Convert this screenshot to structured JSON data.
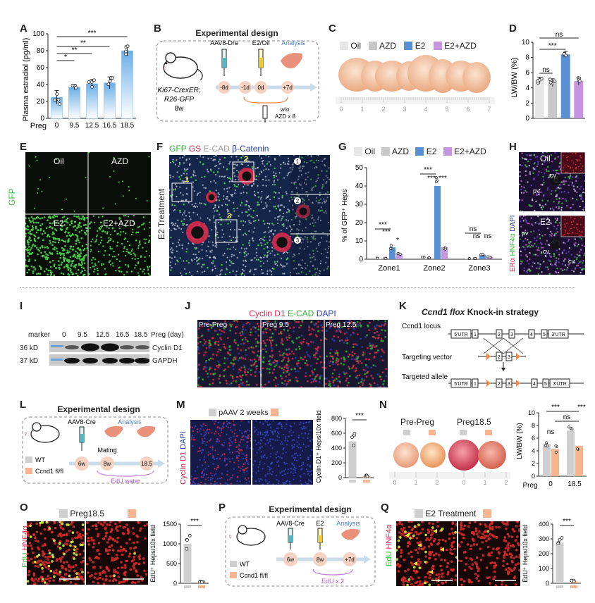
{
  "panels": {
    "A": {
      "label": "A",
      "ylabel": "Plasma estradiol (pg/ml)",
      "xprefix": "Preg",
      "categories": [
        "0",
        "9.5",
        "12.5",
        "16.5",
        "18.5"
      ],
      "yticks": [
        "0",
        "20",
        "40",
        "60",
        "80",
        "100"
      ],
      "sig": [
        "*",
        "**",
        "**",
        "***"
      ]
    },
    "B": {
      "label": "B",
      "title": "Experimental design",
      "mouse_line1": "Ki67-CrexER;",
      "mouse_line2": "R26-GFP",
      "mouse_age": "8w",
      "inj1": "AAV8-Dre",
      "inj2": "E2/Oil",
      "analysis": "Analysis",
      "t1": "-8d",
      "t2": "-1d",
      "t3": "0d",
      "t4": "+7d",
      "wo": "w/o",
      "azd": "AZD x 8"
    },
    "C": {
      "label": "C",
      "legend": [
        "Oil",
        "AZD",
        "E2",
        "E2+AZD"
      ],
      "ruler": [
        "0",
        "1",
        "2",
        "3",
        "4",
        "5",
        "6",
        "7"
      ]
    },
    "D": {
      "label": "D",
      "ylabel": "LW/BW (%)",
      "yticks": [
        "0",
        "2",
        "4",
        "6",
        "8",
        "10"
      ],
      "sig": [
        "ns",
        "***",
        "ns"
      ]
    },
    "E": {
      "label": "E",
      "side": "GFP",
      "quads": [
        "Oil",
        "AZD",
        "E2",
        "E2+AZD"
      ]
    },
    "F": {
      "label": "F",
      "side": "E2 Treatment",
      "title_gfp": "GFP",
      "title_gs": "GS",
      "title_ecad": "E-CAD",
      "title_bcat": "β-Catenin",
      "zones": [
        "1",
        "2",
        "3"
      ]
    },
    "G": {
      "label": "G",
      "legend": [
        "Oil",
        "AZD",
        "E2",
        "E2+AZD"
      ],
      "ylabel": "% of GFP⁺ Heps",
      "yticks": [
        "0",
        "10",
        "20",
        "30",
        "40",
        "50"
      ],
      "sig_z1": [
        "***",
        "***",
        "*"
      ],
      "sig_z2": [
        "***",
        "***",
        "***"
      ],
      "sig_z3": [
        "ns",
        "ns",
        "ns"
      ]
    },
    "H": {
      "label": "H",
      "top": "Oil",
      "bottom": "E2",
      "side_era": "ERα",
      "side_hnf": "HNF4α",
      "side_dapi": "DAPI",
      "pv": "pv",
      "cv": "cv"
    },
    "I": {
      "label": "I",
      "marker": "marker",
      "lanes": [
        "0",
        "9.5",
        "12.5",
        "16.5",
        "18.5"
      ],
      "lane_unit": "Preg (day)",
      "kd1": "36 kD",
      "kd2": "37 kD",
      "band1": "Cyclin D1",
      "band2": "GAPDH"
    },
    "J": {
      "label": "J",
      "title_c": "Cyclin D1",
      "title_e": "E-CAD",
      "title_d": "DAPI",
      "tiles": [
        "Pre-Preg",
        "Preg 9.5",
        "Preg 12.5"
      ]
    },
    "K": {
      "label": "K",
      "title_italic": "Ccnd1 flox",
      "title_rest": "Knock-in strategy",
      "rows": [
        "Ccnd1 locus",
        "Targeting vector",
        "Targeted allele"
      ],
      "utr5": "5'UTR",
      "utr3": "3'UTR",
      "exons": [
        "1",
        "2",
        "3",
        "4",
        "5"
      ]
    },
    "L": {
      "label": "L",
      "title": "Experimental design",
      "inj": "AAV8-Cre",
      "analysis": "Analysis",
      "mating": "Mating",
      "t1": "6w",
      "t2": "8w",
      "t3": "18.5",
      "edu": "EdU water",
      "legend": [
        "WT",
        "Ccnd1 fl/fl"
      ]
    },
    "M": {
      "label": "M",
      "legend": "pAAV 2 weeks",
      "side_c": "Cyclin D1",
      "side_d": "DAPI",
      "ylabel": "Cyclin D1⁺ Heps/10x field",
      "yticks": [
        "0",
        "200",
        "400",
        "600",
        "800"
      ],
      "sig": "***"
    },
    "N": {
      "label": "N",
      "groups": [
        "Pre-Preg",
        "Preg18.5"
      ],
      "ruler": [
        "0",
        "1",
        "2",
        "0",
        "1",
        "2"
      ],
      "ylabel": "LW/BW (%)",
      "yticks": [
        "0",
        "2",
        "4",
        "6",
        "8",
        "10"
      ],
      "xprefix": "Preg",
      "xcats": [
        "0",
        "18.5"
      ],
      "sig": [
        "***",
        "***",
        "ns",
        "ns"
      ]
    },
    "O": {
      "label": "O",
      "legend": "Preg18.5",
      "side_e": "EdU",
      "side_h": "HNF4α",
      "ylabel": "EdU⁺ Heps/10x field",
      "yticks": [
        "0",
        "500",
        "1000",
        "1500"
      ],
      "sig": "***"
    },
    "P": {
      "label": "P",
      "title": "Experimental design",
      "inj1": "AAV8-Cre",
      "inj2": "E2",
      "analysis": "Analysis",
      "t1": "6w",
      "t2": "8w",
      "t3": "+7d",
      "edu": "EdU x 2",
      "legend": [
        "WT",
        "Ccnd1 fl/fl"
      ]
    },
    "Q": {
      "label": "Q",
      "legend": "E2 Treatment",
      "side_e": "EdU",
      "side_h": "HNF4α",
      "ylabel": "EdU⁺ Heps/10x field",
      "yticks": [
        "0",
        "100",
        "200",
        "300",
        "400"
      ],
      "sig": "***"
    }
  },
  "colors": {
    "oil": "#e6e6e6",
    "azd": "#c8c8c8",
    "e2": "#5b8fd4",
    "e2azd": "#c695e0",
    "wt": "#cfcfcf",
    "flfl": "#f6b490",
    "micro_green": "#2fb52f",
    "micro_red": "#d62a4a",
    "micro_blue": "#2a3fa8"
  },
  "chart_data": [
    {
      "panel": "A",
      "type": "bar",
      "categories": [
        "0",
        "9.5",
        "12.5",
        "16.5",
        "18.5"
      ],
      "values": [
        25,
        37,
        41,
        42,
        80
      ],
      "errors": [
        8,
        3,
        5,
        7,
        6
      ],
      "ylim": [
        0,
        100
      ],
      "ylabel": "Plasma estradiol (pg/ml)"
    },
    {
      "panel": "D",
      "type": "bar",
      "categories": [
        "Oil",
        "AZD",
        "E2",
        "E2+AZD"
      ],
      "values": [
        5.0,
        4.7,
        8.4,
        4.9
      ],
      "errors": [
        0.4,
        0.5,
        0.4,
        0.5
      ],
      "ylim": [
        0,
        10
      ],
      "ylabel": "LW/BW (%)"
    },
    {
      "panel": "G",
      "type": "bar",
      "categories": [
        "Zone1",
        "Zone2",
        "Zone3"
      ],
      "series": [
        {
          "name": "Oil",
          "values": [
            0.5,
            1.0,
            0.4
          ]
        },
        {
          "name": "AZD",
          "values": [
            0.5,
            0.8,
            0.4
          ]
        },
        {
          "name": "E2",
          "values": [
            6.5,
            40.0,
            2.5
          ]
        },
        {
          "name": "E2+AZD",
          "values": [
            3.0,
            6.5,
            1.2
          ]
        }
      ],
      "ylim": [
        0,
        50
      ],
      "ylabel": "% of GFP⁺ Heps"
    },
    {
      "panel": "M",
      "type": "bar",
      "categories": [
        "WT",
        "Ccnd1 fl/fl"
      ],
      "values": [
        490,
        20
      ],
      "ylim": [
        0,
        800
      ],
      "ylabel": "Cyclin D1⁺ Heps/10x field"
    },
    {
      "panel": "N",
      "type": "bar",
      "categories": [
        "0",
        "18.5"
      ],
      "series": [
        {
          "name": "WT",
          "values": [
            5.1,
            7.2
          ]
        },
        {
          "name": "Ccnd1 fl/fl",
          "values": [
            4.3,
            4.8
          ]
        }
      ],
      "ylim": [
        0,
        10
      ],
      "ylabel": "LW/BW (%)"
    },
    {
      "panel": "O",
      "type": "bar",
      "categories": [
        "WT",
        "Ccnd1 fl/fl"
      ],
      "values": [
        1000,
        30
      ],
      "ylim": [
        0,
        1500
      ],
      "ylabel": "EdU⁺ Heps/10x field"
    },
    {
      "panel": "Q",
      "type": "bar",
      "categories": [
        "WT",
        "Ccnd1 fl/fl"
      ],
      "values": [
        275,
        15
      ],
      "ylim": [
        0,
        400
      ],
      "ylabel": "EdU⁺ Heps/10x field"
    }
  ]
}
